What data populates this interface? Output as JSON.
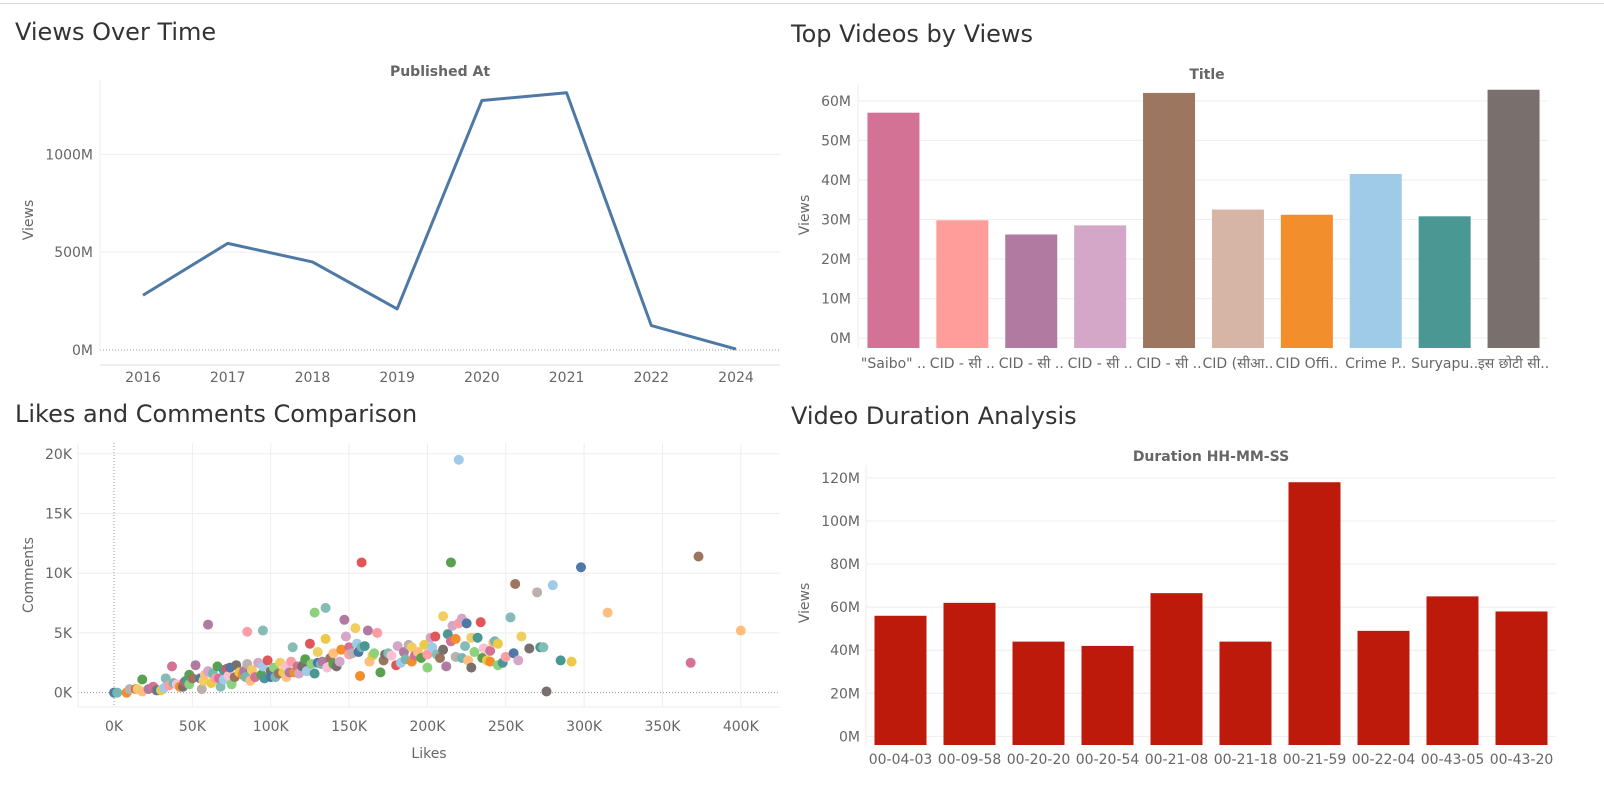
{
  "panels": {
    "views_over_time": "Views Over Time",
    "top_videos": "Top Videos by Views",
    "likes_comments": "Likes and Comments Comparison",
    "duration": "Video Duration Analysis"
  },
  "colors": {
    "line": "#4e79a7",
    "duration_bars": "#be1a0b",
    "top_video_bars": [
      "#d37295",
      "#ff9d9a",
      "#b07aa1",
      "#d4a6c8",
      "#9d7660",
      "#d7b5a6",
      "#f28e2b",
      "#a0cbe8",
      "#499894",
      "#79706e"
    ],
    "scatter_palette": [
      "#4e79a7",
      "#f28e2b",
      "#e15759",
      "#76b7b2",
      "#59a14f",
      "#edc948",
      "#b07aa1",
      "#ff9da7",
      "#9c755f",
      "#bab0ac",
      "#a0cbe8",
      "#ffbe7d",
      "#8cd17d",
      "#86bcb6",
      "#f1ce63",
      "#499894",
      "#d37295",
      "#fabfd2",
      "#d4a6c8",
      "#79706e"
    ]
  },
  "chart_data": [
    {
      "type": "line",
      "title": "Published At",
      "xlabel": "",
      "ylabel": "Views",
      "categories": [
        "2016",
        "2017",
        "2018",
        "2019",
        "2020",
        "2021",
        "2022",
        "2024"
      ],
      "values": [
        280,
        545,
        450,
        210,
        1275,
        1315,
        125,
        5
      ],
      "ylim": [
        0,
        1380
      ],
      "yticks": [
        0,
        500,
        1000
      ],
      "ytick_labels": [
        "0M",
        "500M",
        "1000M"
      ],
      "grid": true
    },
    {
      "type": "bar",
      "title": "Title",
      "xlabel": "",
      "ylabel": "Views",
      "categories": [
        "\"Saibo\" ..",
        "CID - सी ..",
        "CID - सी ..",
        "CID - सी ..",
        "CID - सी ..",
        "CID (सीआ..",
        "CID Offi..",
        "Crime P..",
        "Suryapu..",
        "इस छोटी सी.."
      ],
      "values": [
        57,
        29.8,
        26.2,
        28.5,
        62,
        32.5,
        31.2,
        41.5,
        30.8,
        62.8
      ],
      "ylim": [
        -2.5,
        64
      ],
      "yticks": [
        0,
        10,
        20,
        30,
        40,
        50,
        60
      ],
      "ytick_labels": [
        "0M",
        "10M",
        "20M",
        "30M",
        "40M",
        "50M",
        "60M"
      ],
      "grid": true
    },
    {
      "type": "scatter",
      "title": "",
      "xlabel": "Likes",
      "ylabel": "Comments",
      "xlim": [
        -23,
        425
      ],
      "ylim": [
        -1200,
        20900
      ],
      "xticks": [
        0,
        50,
        100,
        150,
        200,
        250,
        300,
        350,
        400
      ],
      "xtick_labels": [
        "0K",
        "50K",
        "100K",
        "150K",
        "200K",
        "250K",
        "300K",
        "350K",
        "400K"
      ],
      "yticks": [
        0,
        5,
        10,
        15,
        20
      ],
      "ytick_labels": [
        "0K",
        "5K",
        "10K",
        "15K",
        "20K"
      ],
      "grid": true,
      "points": [
        [
          0,
          0,
          0
        ],
        [
          2,
          0,
          3
        ],
        [
          8,
          0,
          1
        ],
        [
          10,
          300,
          9
        ],
        [
          14,
          300,
          2
        ],
        [
          15,
          300,
          14
        ],
        [
          18,
          1100,
          4
        ],
        [
          18,
          100,
          11
        ],
        [
          22,
          300,
          6
        ],
        [
          25,
          500,
          16
        ],
        [
          27,
          200,
          8
        ],
        [
          28,
          200,
          0
        ],
        [
          30,
          200,
          5
        ],
        [
          32,
          400,
          10
        ],
        [
          33,
          1200,
          13
        ],
        [
          35,
          600,
          7
        ],
        [
          37,
          2200,
          16
        ],
        [
          38,
          800,
          3
        ],
        [
          40,
          700,
          17
        ],
        [
          42,
          500,
          1
        ],
        [
          44,
          500,
          19
        ],
        [
          45,
          900,
          2
        ],
        [
          46,
          1000,
          15
        ],
        [
          48,
          700,
          12
        ],
        [
          48,
          1500,
          4
        ],
        [
          50,
          1200,
          8
        ],
        [
          52,
          2300,
          6
        ],
        [
          55,
          1200,
          0
        ],
        [
          56,
          300,
          9
        ],
        [
          57,
          1000,
          14
        ],
        [
          58,
          1500,
          11
        ],
        [
          60,
          5700,
          6
        ],
        [
          60,
          1800,
          18
        ],
        [
          62,
          800,
          5
        ],
        [
          63,
          1600,
          3
        ],
        [
          65,
          1200,
          7
        ],
        [
          66,
          2200,
          4
        ],
        [
          67,
          1200,
          16
        ],
        [
          68,
          500,
          13
        ],
        [
          70,
          1100,
          10
        ],
        [
          70,
          1900,
          15
        ],
        [
          72,
          2000,
          2
        ],
        [
          73,
          1400,
          17
        ],
        [
          74,
          2100,
          0
        ],
        [
          75,
          700,
          12
        ],
        [
          77,
          1300,
          8
        ],
        [
          78,
          2300,
          19
        ],
        [
          80,
          1700,
          5
        ],
        [
          82,
          1500,
          1
        ],
        [
          83,
          1800,
          6
        ],
        [
          84,
          1300,
          3
        ],
        [
          85,
          5100,
          7
        ],
        [
          85,
          2400,
          9
        ],
        [
          87,
          1000,
          11
        ],
        [
          88,
          1900,
          14
        ],
        [
          90,
          1300,
          16
        ],
        [
          92,
          2500,
          18
        ],
        [
          94,
          1500,
          4
        ],
        [
          95,
          5200,
          13
        ],
        [
          95,
          2200,
          10
        ],
        [
          96,
          1200,
          15
        ],
        [
          98,
          2700,
          2
        ],
        [
          100,
          1800,
          19
        ],
        [
          100,
          1300,
          0
        ],
        [
          102,
          2100,
          12
        ],
        [
          103,
          1300,
          3
        ],
        [
          105,
          1600,
          8
        ],
        [
          106,
          2500,
          14
        ],
        [
          108,
          1700,
          5
        ],
        [
          110,
          2200,
          17
        ],
        [
          110,
          1300,
          11
        ],
        [
          112,
          1700,
          6
        ],
        [
          113,
          2600,
          7
        ],
        [
          114,
          3800,
          13
        ],
        [
          115,
          1700,
          1
        ],
        [
          117,
          2200,
          16
        ],
        [
          118,
          1600,
          18
        ],
        [
          120,
          2300,
          9
        ],
        [
          120,
          2200,
          19
        ],
        [
          122,
          2800,
          4
        ],
        [
          123,
          1800,
          10
        ],
        [
          125,
          4100,
          2
        ],
        [
          126,
          2400,
          12
        ],
        [
          128,
          6700,
          12
        ],
        [
          128,
          1600,
          15
        ],
        [
          130,
          3400,
          14
        ],
        [
          130,
          2500,
          0
        ],
        [
          132,
          2400,
          3
        ],
        [
          133,
          2600,
          6
        ],
        [
          135,
          7100,
          13
        ],
        [
          135,
          4500,
          5
        ],
        [
          136,
          2100,
          17
        ],
        [
          138,
          2900,
          8
        ],
        [
          140,
          3300,
          11
        ],
        [
          140,
          2400,
          4
        ],
        [
          142,
          2200,
          19
        ],
        [
          144,
          2600,
          18
        ],
        [
          145,
          3600,
          1
        ],
        [
          147,
          6100,
          6
        ],
        [
          148,
          4700,
          18
        ],
        [
          150,
          3800,
          16
        ],
        [
          150,
          3200,
          7
        ],
        [
          152,
          3300,
          9
        ],
        [
          154,
          5400,
          14
        ],
        [
          155,
          4100,
          10
        ],
        [
          156,
          3400,
          0
        ],
        [
          157,
          1400,
          1
        ],
        [
          158,
          10900,
          2
        ],
        [
          158,
          3800,
          3
        ],
        [
          160,
          3900,
          15
        ],
        [
          162,
          5200,
          6
        ],
        [
          163,
          2600,
          11
        ],
        [
          165,
          3100,
          5
        ],
        [
          166,
          3300,
          12
        ],
        [
          168,
          5000,
          7
        ],
        [
          170,
          1700,
          4
        ],
        [
          172,
          2700,
          8
        ],
        [
          173,
          3200,
          19
        ],
        [
          175,
          3300,
          13
        ],
        [
          177,
          3100,
          17
        ],
        [
          180,
          2300,
          2
        ],
        [
          181,
          3900,
          18
        ],
        [
          183,
          2500,
          10
        ],
        [
          185,
          3400,
          6
        ],
        [
          186,
          2800,
          3
        ],
        [
          188,
          4000,
          9
        ],
        [
          190,
          2600,
          1
        ],
        [
          190,
          3800,
          14
        ],
        [
          192,
          3100,
          16
        ],
        [
          194,
          3400,
          11
        ],
        [
          196,
          2900,
          4
        ],
        [
          198,
          4000,
          5
        ],
        [
          200,
          2100,
          12
        ],
        [
          200,
          3200,
          7
        ],
        [
          202,
          4600,
          18
        ],
        [
          203,
          3800,
          10
        ],
        [
          205,
          4700,
          2
        ],
        [
          206,
          3200,
          13
        ],
        [
          208,
          2900,
          8
        ],
        [
          210,
          6400,
          14
        ],
        [
          210,
          3600,
          19
        ],
        [
          212,
          2200,
          6
        ],
        [
          213,
          4900,
          15
        ],
        [
          215,
          10900,
          4
        ],
        [
          215,
          4300,
          16
        ],
        [
          216,
          5600,
          18
        ],
        [
          218,
          4500,
          1
        ],
        [
          218,
          3000,
          9
        ],
        [
          220,
          19500,
          10
        ],
        [
          220,
          5800,
          7
        ],
        [
          222,
          6200,
          18
        ],
        [
          222,
          2900,
          3
        ],
        [
          224,
          3900,
          13
        ],
        [
          225,
          5800,
          0
        ],
        [
          226,
          2700,
          11
        ],
        [
          228,
          4600,
          14
        ],
        [
          228,
          2100,
          19
        ],
        [
          230,
          3400,
          12
        ],
        [
          232,
          4600,
          15
        ],
        [
          234,
          5900,
          2
        ],
        [
          235,
          2900,
          4
        ],
        [
          236,
          3700,
          17
        ],
        [
          238,
          2700,
          5
        ],
        [
          240,
          3500,
          16
        ],
        [
          240,
          2600,
          1
        ],
        [
          242,
          4200,
          11
        ],
        [
          243,
          4300,
          3
        ],
        [
          245,
          2300,
          12
        ],
        [
          245,
          4100,
          5
        ],
        [
          248,
          2500,
          15
        ],
        [
          250,
          3000,
          7
        ],
        [
          253,
          6300,
          13
        ],
        [
          255,
          3300,
          0
        ],
        [
          256,
          9100,
          8
        ],
        [
          258,
          2700,
          18
        ],
        [
          260,
          4700,
          14
        ],
        [
          265,
          3700,
          19
        ],
        [
          270,
          8400,
          9
        ],
        [
          272,
          3800,
          15
        ],
        [
          274,
          3800,
          13
        ],
        [
          276,
          100,
          19
        ],
        [
          280,
          9000,
          10
        ],
        [
          285,
          2700,
          15
        ],
        [
          292,
          2600,
          5
        ],
        [
          298,
          10500,
          0
        ],
        [
          315,
          6700,
          11
        ],
        [
          368,
          2500,
          16
        ],
        [
          373,
          11400,
          8
        ],
        [
          400,
          5200,
          11
        ]
      ]
    },
    {
      "type": "bar",
      "title": "Duration HH-MM-SS",
      "xlabel": "",
      "ylabel": "Views",
      "categories": [
        "00-04-03",
        "00-09-58",
        "00-20-20",
        "00-20-54",
        "00-21-08",
        "00-21-18",
        "00-21-59",
        "00-22-04",
        "00-43-05",
        "00-43-20"
      ],
      "values": [
        56,
        62,
        44,
        42,
        66.5,
        44,
        118,
        49,
        65,
        58
      ],
      "ylim": [
        -4,
        126
      ],
      "yticks": [
        0,
        20,
        40,
        60,
        80,
        100,
        120
      ],
      "ytick_labels": [
        "0M",
        "20M",
        "40M",
        "60M",
        "80M",
        "100M",
        "120M"
      ],
      "grid": true
    }
  ]
}
